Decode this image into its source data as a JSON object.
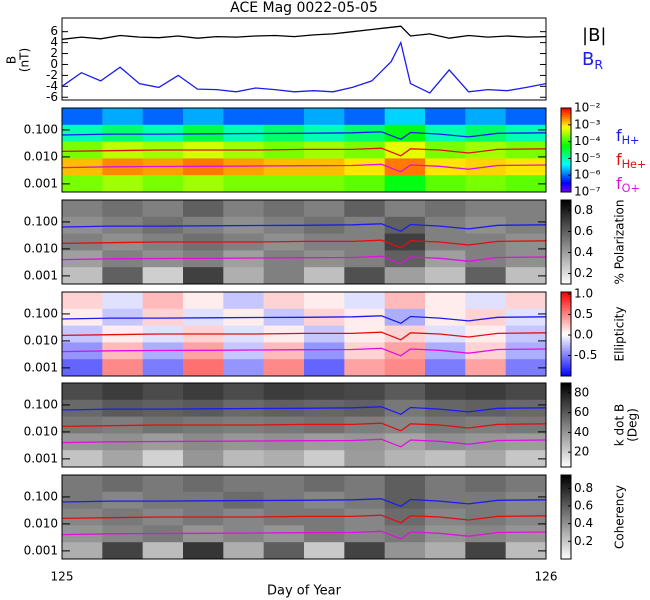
{
  "chart_data": {
    "type": "spectrogram-stack",
    "title": "ACE Mag 0022-05-05",
    "xlabel": "Day of Year",
    "xlim": [
      125,
      126
    ],
    "xticks": [
      125,
      126
    ],
    "field_panel": {
      "ylabel": "B",
      "yunit": "(nT)",
      "ylim": [
        -6.5,
        8.5
      ],
      "yticks": [
        -6,
        -4,
        -2,
        0,
        2,
        4,
        6
      ],
      "x": [
        125,
        125.04,
        125.08,
        125.12,
        125.16,
        125.2,
        125.24,
        125.28,
        125.32,
        125.36,
        125.4,
        125.44,
        125.48,
        125.52,
        125.56,
        125.6,
        125.64,
        125.68,
        125.7,
        125.72,
        125.76,
        125.8,
        125.84,
        125.88,
        125.92,
        125.96,
        126
      ],
      "series": [
        {
          "name": "|B|",
          "subscript": "",
          "color": "#000000",
          "values": [
            4.6,
            5.0,
            4.7,
            5.3,
            5.0,
            4.9,
            5.2,
            4.8,
            5.1,
            5.0,
            5.2,
            5.3,
            5.1,
            5.4,
            5.6,
            6.0,
            6.4,
            6.8,
            7.0,
            5.2,
            5.6,
            4.8,
            5.3,
            5.0,
            5.2,
            5.0,
            5.1
          ]
        },
        {
          "name": "B",
          "subscript": "R",
          "color": "#1c1cf0",
          "values": [
            -4.0,
            -1.5,
            -3.0,
            -0.5,
            -3.5,
            -4.2,
            -2.0,
            -4.5,
            -4.6,
            -5.0,
            -4.3,
            -4.6,
            -5.0,
            -4.8,
            -5.0,
            -4.2,
            -3.0,
            0.5,
            4.0,
            -3.5,
            -5.2,
            -1.0,
            -5.0,
            -4.6,
            -4.8,
            -4.2,
            -3.5
          ]
        }
      ]
    },
    "ylim": [
      0.0005,
      0.65
    ],
    "yticks": [
      0.001,
      {
        "value": 0.01,
        "label": "0.010"
      },
      {
        "value": 0.1,
        "label": "0.100"
      }
    ],
    "ion_lines": {
      "x": [
        125,
        125.1,
        125.2,
        125.3,
        125.4,
        125.5,
        125.6,
        125.66,
        125.7,
        125.72,
        125.78,
        125.84,
        125.9,
        126
      ],
      "series": [
        {
          "name": "f",
          "subscript": "H+",
          "color": "#1c1cf0",
          "values": [
            0.065,
            0.07,
            0.07,
            0.072,
            0.074,
            0.075,
            0.078,
            0.085,
            0.045,
            0.08,
            0.07,
            0.055,
            0.075,
            0.078
          ]
        },
        {
          "name": "f",
          "subscript": "He+",
          "color": "#e01010",
          "values": [
            0.016,
            0.017,
            0.018,
            0.018,
            0.018,
            0.019,
            0.019,
            0.021,
            0.011,
            0.02,
            0.018,
            0.014,
            0.019,
            0.02
          ]
        },
        {
          "name": "f",
          "subscript": "O+",
          "color": "#e010e0",
          "values": [
            0.004,
            0.0043,
            0.0044,
            0.0045,
            0.0046,
            0.0047,
            0.0048,
            0.0053,
            0.0028,
            0.005,
            0.0045,
            0.0035,
            0.0048,
            0.005
          ]
        }
      ]
    },
    "panels": [
      {
        "colormap": "rainbow",
        "zlog": true,
        "zlim": [
          1e-07,
          0.01
        ],
        "colorbar_label": [],
        "zticks": [
          {
            "value": 0.01,
            "label": "10⁻²"
          },
          {
            "value": 0.001,
            "label": "10⁻³"
          },
          {
            "value": 0.0001,
            "label": "10⁻⁴"
          },
          {
            "value": 1e-05,
            "label": "10⁻⁵"
          },
          {
            "value": 1e-06,
            "label": "10⁻⁶"
          },
          {
            "value": 1e-07,
            "label": "10⁻⁷"
          }
        ],
        "cells": [
          [
            1e-06,
            2e-06,
            1e-06,
            2e-06,
            1e-06,
            1e-06,
            2e-06,
            1e-06,
            3e-06,
            1e-06,
            2e-06,
            1e-06
          ],
          [
            1e-05,
            2e-05,
            1e-05,
            3e-05,
            1e-05,
            2e-05,
            1e-05,
            2e-05,
            5e-05,
            1e-05,
            2e-05,
            1e-05
          ],
          [
            0.0002,
            0.0004,
            0.0003,
            0.0005,
            0.0003,
            0.0002,
            0.0003,
            0.0002,
            0.0006,
            0.0002,
            0.0003,
            0.0002
          ],
          [
            0.0015,
            0.0025,
            0.002,
            0.003,
            0.002,
            0.0015,
            0.0015,
            0.001,
            0.003,
            0.001,
            0.0012,
            0.001
          ],
          [
            0.0002,
            0.0003,
            0.0002,
            0.0003,
            0.0002,
            0.0002,
            0.0002,
            0.00015,
            5e-05,
            0.00015,
            0.0002,
            0.00015
          ]
        ]
      },
      {
        "colormap": "gray",
        "zlog": false,
        "zlim": [
          0.1,
          0.9
        ],
        "colorbar_label": [
          "% Polarization"
        ],
        "zticks": [
          0.2,
          0.4,
          0.6,
          0.8
        ],
        "cells": [
          [
            0.5,
            0.55,
            0.5,
            0.6,
            0.5,
            0.55,
            0.5,
            0.6,
            0.5,
            0.55,
            0.5,
            0.5
          ],
          [
            0.45,
            0.5,
            0.55,
            0.5,
            0.45,
            0.5,
            0.55,
            0.5,
            0.6,
            0.5,
            0.45,
            0.5
          ],
          [
            0.5,
            0.45,
            0.5,
            0.55,
            0.5,
            0.45,
            0.5,
            0.5,
            0.7,
            0.5,
            0.5,
            0.45
          ],
          [
            0.4,
            0.5,
            0.45,
            0.5,
            0.4,
            0.5,
            0.45,
            0.5,
            0.6,
            0.4,
            0.5,
            0.45
          ],
          [
            0.3,
            0.6,
            0.25,
            0.7,
            0.35,
            0.5,
            0.3,
            0.65,
            0.4,
            0.3,
            0.6,
            0.3
          ]
        ]
      },
      {
        "colormap": "bwr",
        "zlog": false,
        "zlim": [
          -1,
          1.05
        ],
        "colorbar_label": [
          "Ellipticity"
        ],
        "zticks": [
          -0.5,
          {
            "value": 0,
            "label": "0.0"
          },
          0.5,
          {
            "value": 1,
            "label": "1.0"
          }
        ],
        "cells": [
          [
            0.2,
            -0.1,
            0.3,
            0.1,
            -0.2,
            0.2,
            0.1,
            -0.1,
            0.3,
            0.1,
            -0.1,
            0.2
          ],
          [
            0.1,
            -0.2,
            0.2,
            -0.1,
            0.1,
            -0.2,
            0.2,
            0.1,
            -0.3,
            0.1,
            0.2,
            -0.1
          ],
          [
            -0.2,
            0.1,
            -0.1,
            0.2,
            -0.1,
            0.1,
            -0.2,
            0.1,
            0.2,
            -0.1,
            0.1,
            -0.2
          ],
          [
            -0.4,
            0.3,
            -0.3,
            0.4,
            -0.2,
            0.3,
            -0.4,
            0.2,
            0.4,
            -0.3,
            0.2,
            -0.3
          ],
          [
            -0.6,
            0.5,
            -0.5,
            0.6,
            -0.4,
            0.5,
            -0.6,
            0.4,
            0.5,
            -0.5,
            0.4,
            -0.5
          ]
        ]
      },
      {
        "colormap": "gray",
        "zlog": false,
        "zlim": [
          5,
          90
        ],
        "colorbar_label": [
          "k dot B",
          "(Deg)"
        ],
        "zticks": [
          20,
          40,
          60,
          80
        ],
        "cells": [
          [
            65,
            70,
            65,
            70,
            65,
            70,
            68,
            66,
            60,
            68,
            70,
            66
          ],
          [
            55,
            60,
            58,
            60,
            55,
            58,
            56,
            58,
            50,
            56,
            58,
            55
          ],
          [
            50,
            48,
            52,
            50,
            48,
            50,
            52,
            48,
            45,
            50,
            48,
            50
          ],
          [
            40,
            42,
            38,
            44,
            40,
            42,
            38,
            40,
            35,
            42,
            40,
            38
          ],
          [
            25,
            35,
            20,
            40,
            28,
            32,
            22,
            38,
            30,
            26,
            34,
            24
          ]
        ]
      },
      {
        "colormap": "gray",
        "zlog": false,
        "zlim": [
          0,
          0.95
        ],
        "colorbar_label": [
          "Coherency"
        ],
        "zticks": [
          0.2,
          0.4,
          0.6,
          0.8
        ],
        "cells": [
          [
            0.5,
            0.55,
            0.5,
            0.55,
            0.5,
            0.5,
            0.55,
            0.5,
            0.6,
            0.5,
            0.55,
            0.5
          ],
          [
            0.5,
            0.45,
            0.5,
            0.5,
            0.55,
            0.5,
            0.45,
            0.5,
            0.6,
            0.5,
            0.5,
            0.45
          ],
          [
            0.45,
            0.5,
            0.45,
            0.5,
            0.45,
            0.5,
            0.5,
            0.45,
            0.55,
            0.45,
            0.5,
            0.45
          ],
          [
            0.4,
            0.45,
            0.5,
            0.4,
            0.45,
            0.4,
            0.5,
            0.45,
            0.5,
            0.4,
            0.45,
            0.4
          ],
          [
            0.3,
            0.7,
            0.25,
            0.75,
            0.3,
            0.6,
            0.2,
            0.7,
            0.4,
            0.3,
            0.7,
            0.25
          ]
        ]
      }
    ]
  }
}
